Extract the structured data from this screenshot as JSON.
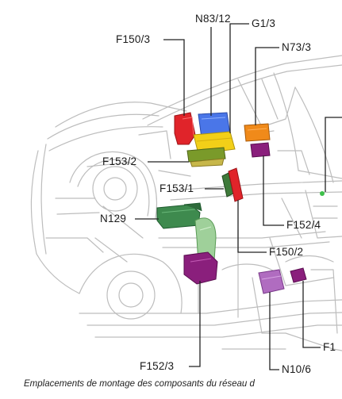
{
  "labels": {
    "n83_12": "N83/12",
    "f150_3": "F150/3",
    "g1_3": "G1/3",
    "n73_3": "N73/3",
    "f153_2": "F153/2",
    "f153_1": "F153/1",
    "n129": "N129",
    "f152_4": "F152/4",
    "f150_2": "F150/2",
    "f152_3": "F152/3",
    "f1": "F1",
    "n10_6": "N10/6"
  },
  "caption": "Emplacements de montage des composants du réseau d",
  "colors": {
    "f150": "#e0242a",
    "n83_12": "#4a76e8",
    "g1_3": "#f2cf18",
    "n73_3": "#f08a1a",
    "f153": "#7a9a2a",
    "n129": "#3e8a4e",
    "f152": "#8a1f7c",
    "n10_6": "#b06cc0",
    "leader": "#222222",
    "car_line": "#b8b8b8"
  }
}
